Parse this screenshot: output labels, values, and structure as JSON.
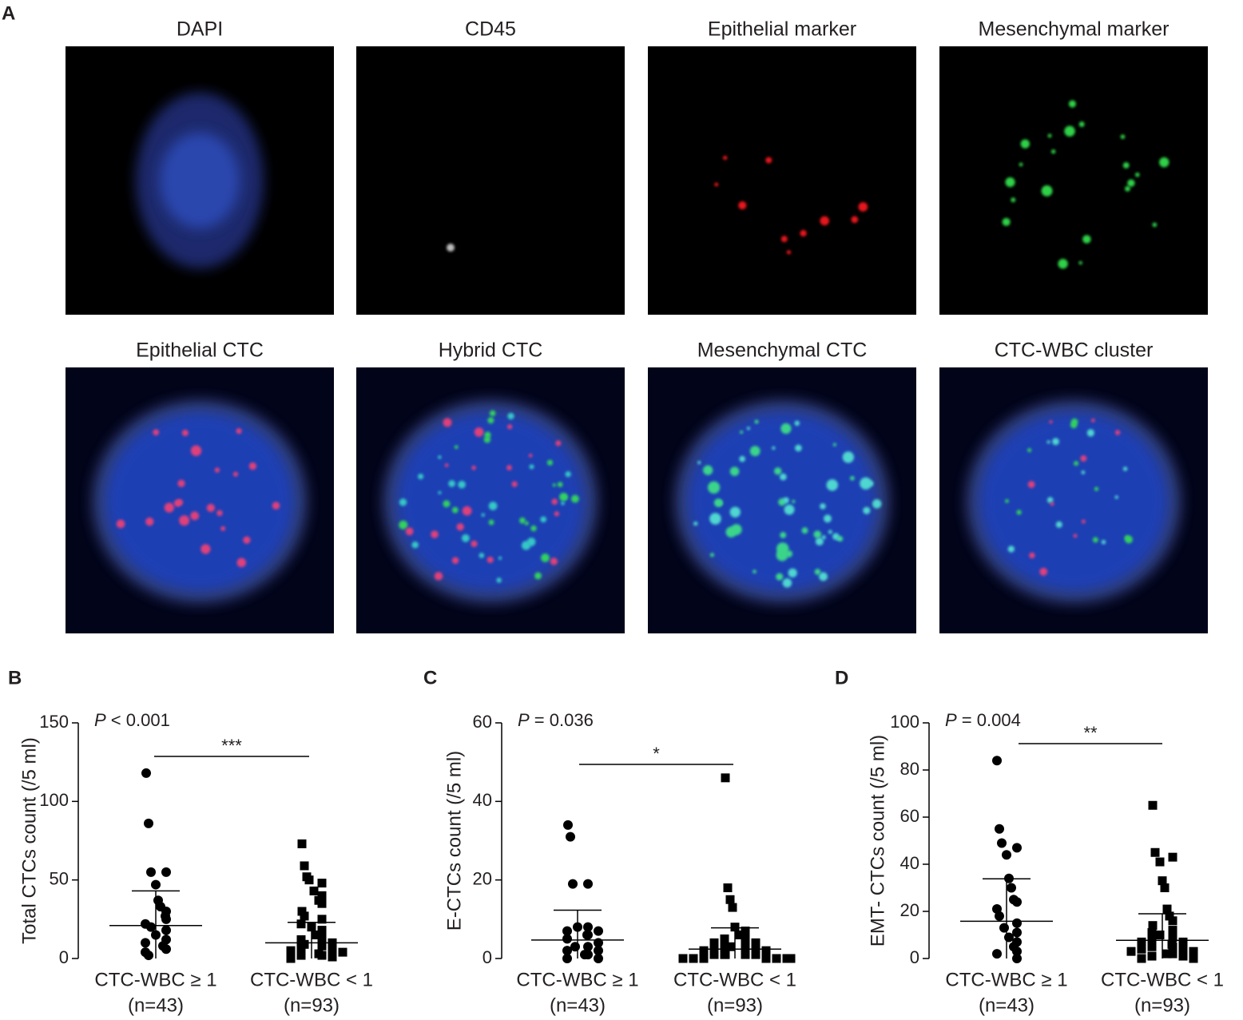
{
  "panel_a": {
    "label": "A",
    "titles": [
      "DAPI",
      "CD45",
      "Epithelial marker",
      "Mesenchymal marker",
      "Epithelial CTC",
      "Hybrid CTC",
      "Mesenchymal CTC",
      "CTC-WBC cluster"
    ]
  },
  "chart_data": [
    {
      "type": "scatter",
      "panel": "B",
      "ylabel": "Total CTCs count (/5 ml)",
      "p_label": {
        "italic": "P",
        "rest": " < 0.001"
      },
      "significance": "***",
      "categories": [
        [
          "CTC-WBC ≥ 1",
          "(n=43)"
        ],
        [
          "CTC-WBC < 1",
          "(n=93)"
        ]
      ],
      "ylim": [
        0,
        150
      ],
      "yticks": [
        0,
        50,
        100,
        150
      ],
      "series": [
        {
          "marker": "circle",
          "color": "#000000",
          "mean": 21,
          "sd": 22,
          "values": [
            118,
            86,
            55,
            55,
            47,
            37,
            33,
            30,
            27,
            25,
            22,
            20,
            18,
            15,
            12,
            10,
            8,
            6,
            4,
            2
          ]
        },
        {
          "marker": "square",
          "color": "#000000",
          "mean": 10,
          "sd": 13,
          "values": [
            73,
            59,
            52,
            50,
            48,
            43,
            40,
            37,
            35,
            30,
            27,
            25,
            22,
            20,
            18,
            15,
            13,
            12,
            10,
            9,
            8,
            7,
            6,
            5,
            4,
            3,
            2,
            2,
            1,
            0
          ]
        }
      ]
    },
    {
      "type": "scatter",
      "panel": "C",
      "ylabel": "E-CTCs count (/5 ml)",
      "p_label": {
        "italic": "P",
        "rest": " = 0.036"
      },
      "significance": "*",
      "categories": [
        [
          "CTC-WBC ≥ 1",
          "(n=43)"
        ],
        [
          "CTC-WBC < 1",
          "(n=93)"
        ]
      ],
      "ylim": [
        0,
        60
      ],
      "yticks": [
        0,
        20,
        40,
        60
      ],
      "series": [
        {
          "marker": "circle",
          "color": "#000000",
          "mean": 4.7,
          "sd": 7.6,
          "values": [
            34,
            31,
            19,
            19,
            8,
            8,
            7,
            7,
            6,
            6,
            5,
            4,
            3,
            3,
            2,
            2,
            1,
            1,
            0,
            0
          ]
        },
        {
          "marker": "square",
          "color": "#000000",
          "mean": 2.4,
          "sd": 5.4,
          "values": [
            46,
            18,
            15,
            13,
            8,
            7,
            6,
            5,
            5,
            4,
            4,
            3,
            3,
            3,
            2,
            2,
            2,
            2,
            1,
            1,
            1,
            1,
            1,
            0,
            0,
            0,
            0,
            0,
            0,
            0
          ]
        }
      ]
    },
    {
      "type": "scatter",
      "panel": "D",
      "ylabel": "EMT- CTCs count (/5 ml)",
      "p_label": {
        "italic": "P",
        "rest": " = 0.004"
      },
      "significance": "**",
      "categories": [
        [
          "CTC-WBC ≥ 1",
          "(n=43)"
        ],
        [
          "CTC-WBC < 1",
          "(n=93)"
        ]
      ],
      "ylim": [
        0,
        100
      ],
      "yticks": [
        0,
        20,
        40,
        60,
        80,
        100
      ],
      "series": [
        {
          "marker": "circle",
          "color": "#000000",
          "mean": 15.8,
          "sd": 18,
          "values": [
            84,
            55,
            49,
            47,
            44,
            34,
            30,
            25,
            24,
            21,
            18,
            15,
            13,
            11,
            9,
            7,
            5,
            3,
            2,
            0
          ]
        },
        {
          "marker": "square",
          "color": "#000000",
          "mean": 7.7,
          "sd": 11.3,
          "values": [
            65,
            45,
            43,
            41,
            33,
            30,
            21,
            18,
            16,
            14,
            12,
            11,
            10,
            9,
            8,
            7,
            7,
            6,
            5,
            5,
            4,
            4,
            3,
            3,
            2,
            2,
            1,
            1,
            0,
            0
          ]
        }
      ]
    }
  ]
}
